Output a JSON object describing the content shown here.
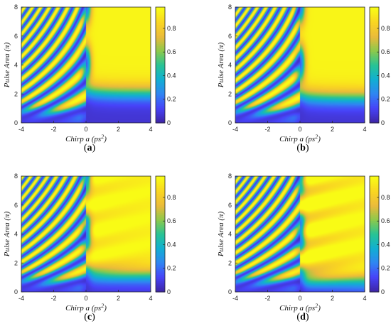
{
  "figure": {
    "colors": {
      "colormap": [
        "#3e26a8",
        "#4743f9",
        "#2f86f2",
        "#11afd2",
        "#28c395",
        "#8bc94c",
        "#eabb3a",
        "#f9d522",
        "#f9fb15"
      ],
      "axis": "#262626",
      "background": "#ffffff"
    }
  },
  "chart_data": [
    {
      "type": "heatmap",
      "panel_label": "(a)",
      "panel_label_parts": {
        "open": "(",
        "letter": "a",
        "close": ")"
      },
      "xlabel": "Chirp a (ps²)",
      "ylabel": "Pulse Area (π)",
      "xlim": [
        -4,
        4
      ],
      "ylim": [
        0,
        8
      ],
      "x_ticks": [
        "-4",
        "-2",
        "0",
        "2",
        "4"
      ],
      "y_ticks": [
        "0",
        "2",
        "4",
        "6",
        "8"
      ],
      "colorbar": {
        "range": [
          0,
          0.98
        ],
        "ticks": [
          "0",
          "0.2",
          "0.4",
          "0.6",
          "0.8"
        ]
      },
      "grid": false
    },
    {
      "type": "heatmap",
      "panel_label": "(b)",
      "panel_label_parts": {
        "open": "(",
        "letter": "b",
        "close": ")"
      },
      "xlabel": "Chirp a (ps²)",
      "ylabel": "Pulse Area (π)",
      "xlim": [
        -4,
        4
      ],
      "ylim": [
        0,
        8
      ],
      "x_ticks": [
        "-4",
        "-2",
        "0",
        "2",
        "4"
      ],
      "y_ticks": [
        "0",
        "2",
        "4",
        "6",
        "8"
      ],
      "colorbar": {
        "range": [
          0,
          0.98
        ],
        "ticks": [
          "0",
          "0.2",
          "0.4",
          "0.6",
          "0.8"
        ]
      },
      "grid": false
    },
    {
      "type": "heatmap",
      "panel_label": "(c)",
      "panel_label_parts": {
        "open": "(",
        "letter": "c",
        "close": ")"
      },
      "xlabel": "Chirp a (ps²)",
      "ylabel": "Pulse Area (π)",
      "xlim": [
        -4,
        4
      ],
      "ylim": [
        0,
        8
      ],
      "x_ticks": [
        "-4",
        "-2",
        "0",
        "2",
        "4"
      ],
      "y_ticks": [
        "0",
        "2",
        "4",
        "6",
        "8"
      ],
      "colorbar": {
        "range": [
          0,
          0.98
        ],
        "ticks": [
          "0",
          "0.2",
          "0.4",
          "0.6",
          "0.8"
        ]
      },
      "grid": false
    },
    {
      "type": "heatmap",
      "panel_label": "(d)",
      "panel_label_parts": {
        "open": "(",
        "letter": "d",
        "close": ")"
      },
      "xlabel": "Chirp a (ps²)",
      "ylabel": "Pulse Area (π)",
      "xlim": [
        -4,
        4
      ],
      "ylim": [
        0,
        8
      ],
      "x_ticks": [
        "-4",
        "-2",
        "0",
        "2",
        "4"
      ],
      "y_ticks": [
        "0",
        "2",
        "4",
        "6",
        "8"
      ],
      "colorbar": {
        "range": [
          0,
          0.98
        ],
        "ticks": [
          "0",
          "0.2",
          "0.4",
          "0.6",
          "0.8"
        ]
      },
      "grid": false
    }
  ]
}
